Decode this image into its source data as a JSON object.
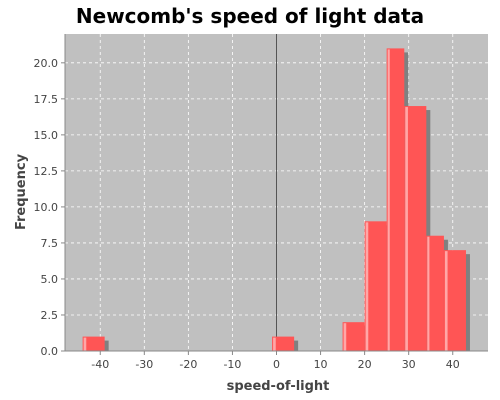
{
  "chart_data": {
    "type": "bar",
    "title": "Newcomb's speed of light data",
    "xlabel": "speed-of-light",
    "ylabel": "Frequency",
    "xlim": [
      -48,
      48
    ],
    "ylim": [
      0,
      22
    ],
    "grid": true,
    "x_ticks": [
      -40,
      -30,
      -20,
      -10,
      0,
      10,
      20,
      30,
      40
    ],
    "y_ticks": [
      0.0,
      2.5,
      5.0,
      7.5,
      10.0,
      12.5,
      15.0,
      17.5,
      20.0
    ],
    "bins": [
      {
        "x0": -44,
        "x1": -39,
        "count": 1
      },
      {
        "x0": -1,
        "x1": 4,
        "count": 1
      },
      {
        "x0": 15,
        "x1": 20,
        "count": 2
      },
      {
        "x0": 20,
        "x1": 25,
        "count": 9
      },
      {
        "x0": 25,
        "x1": 29,
        "count": 21
      },
      {
        "x0": 29,
        "x1": 34,
        "count": 17
      },
      {
        "x0": 34,
        "x1": 38,
        "count": 8
      },
      {
        "x0": 38,
        "x1": 43,
        "count": 7
      }
    ],
    "colors": {
      "plot_background": "#c0c0c0",
      "bar": "#ff5555",
      "bar_highlight": "#ffb0b0",
      "bar_shadow": "#808080",
      "grid": "#ffffff",
      "zero_line": "#555555"
    }
  }
}
